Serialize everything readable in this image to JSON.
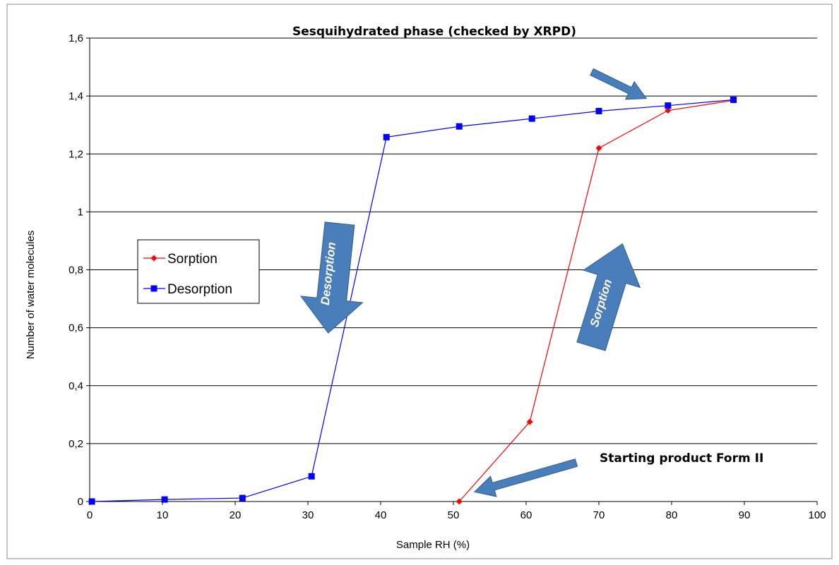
{
  "chart_data": {
    "type": "line",
    "xlabel": "Sample RH (%)",
    "ylabel": "Number of water molecules",
    "xlim": [
      0,
      100
    ],
    "ylim": [
      0,
      1.6
    ],
    "x_ticks": [
      "0",
      "10",
      "20",
      "30",
      "40",
      "50",
      "60",
      "70",
      "80",
      "90",
      "100"
    ],
    "y_ticks": [
      "0",
      "0,2",
      "0,4",
      "0,6",
      "0,8",
      "1",
      "1,2",
      "1,4",
      "1,6"
    ],
    "grid": "horizontal",
    "legend": "middle-left",
    "series": [
      {
        "name": "Sorption",
        "color": "#ff0000",
        "marker": "diamond",
        "points": [
          [
            50.8,
            0.0
          ],
          [
            60.5,
            0.275
          ],
          [
            70.0,
            1.22
          ],
          [
            79.5,
            1.35
          ],
          [
            88.5,
            1.385
          ]
        ]
      },
      {
        "name": "Desorption",
        "color": "#0000ff",
        "marker": "square",
        "points": [
          [
            0.3,
            0.0
          ],
          [
            10.3,
            0.007
          ],
          [
            21.0,
            0.012
          ],
          [
            30.5,
            0.087
          ],
          [
            40.8,
            1.258
          ],
          [
            50.8,
            1.295
          ],
          [
            60.8,
            1.322
          ],
          [
            70.0,
            1.348
          ],
          [
            79.5,
            1.367
          ],
          [
            88.5,
            1.387
          ]
        ]
      }
    ],
    "annotations": {
      "sesquihydrate": "Sesquihydrated phase (checked by XRPD)",
      "starting_product": "Starting product Form II",
      "desorption_arrow": "Desorption",
      "sorption_arrow": "Sorption"
    },
    "arrow_color": "#4a7ebb"
  }
}
